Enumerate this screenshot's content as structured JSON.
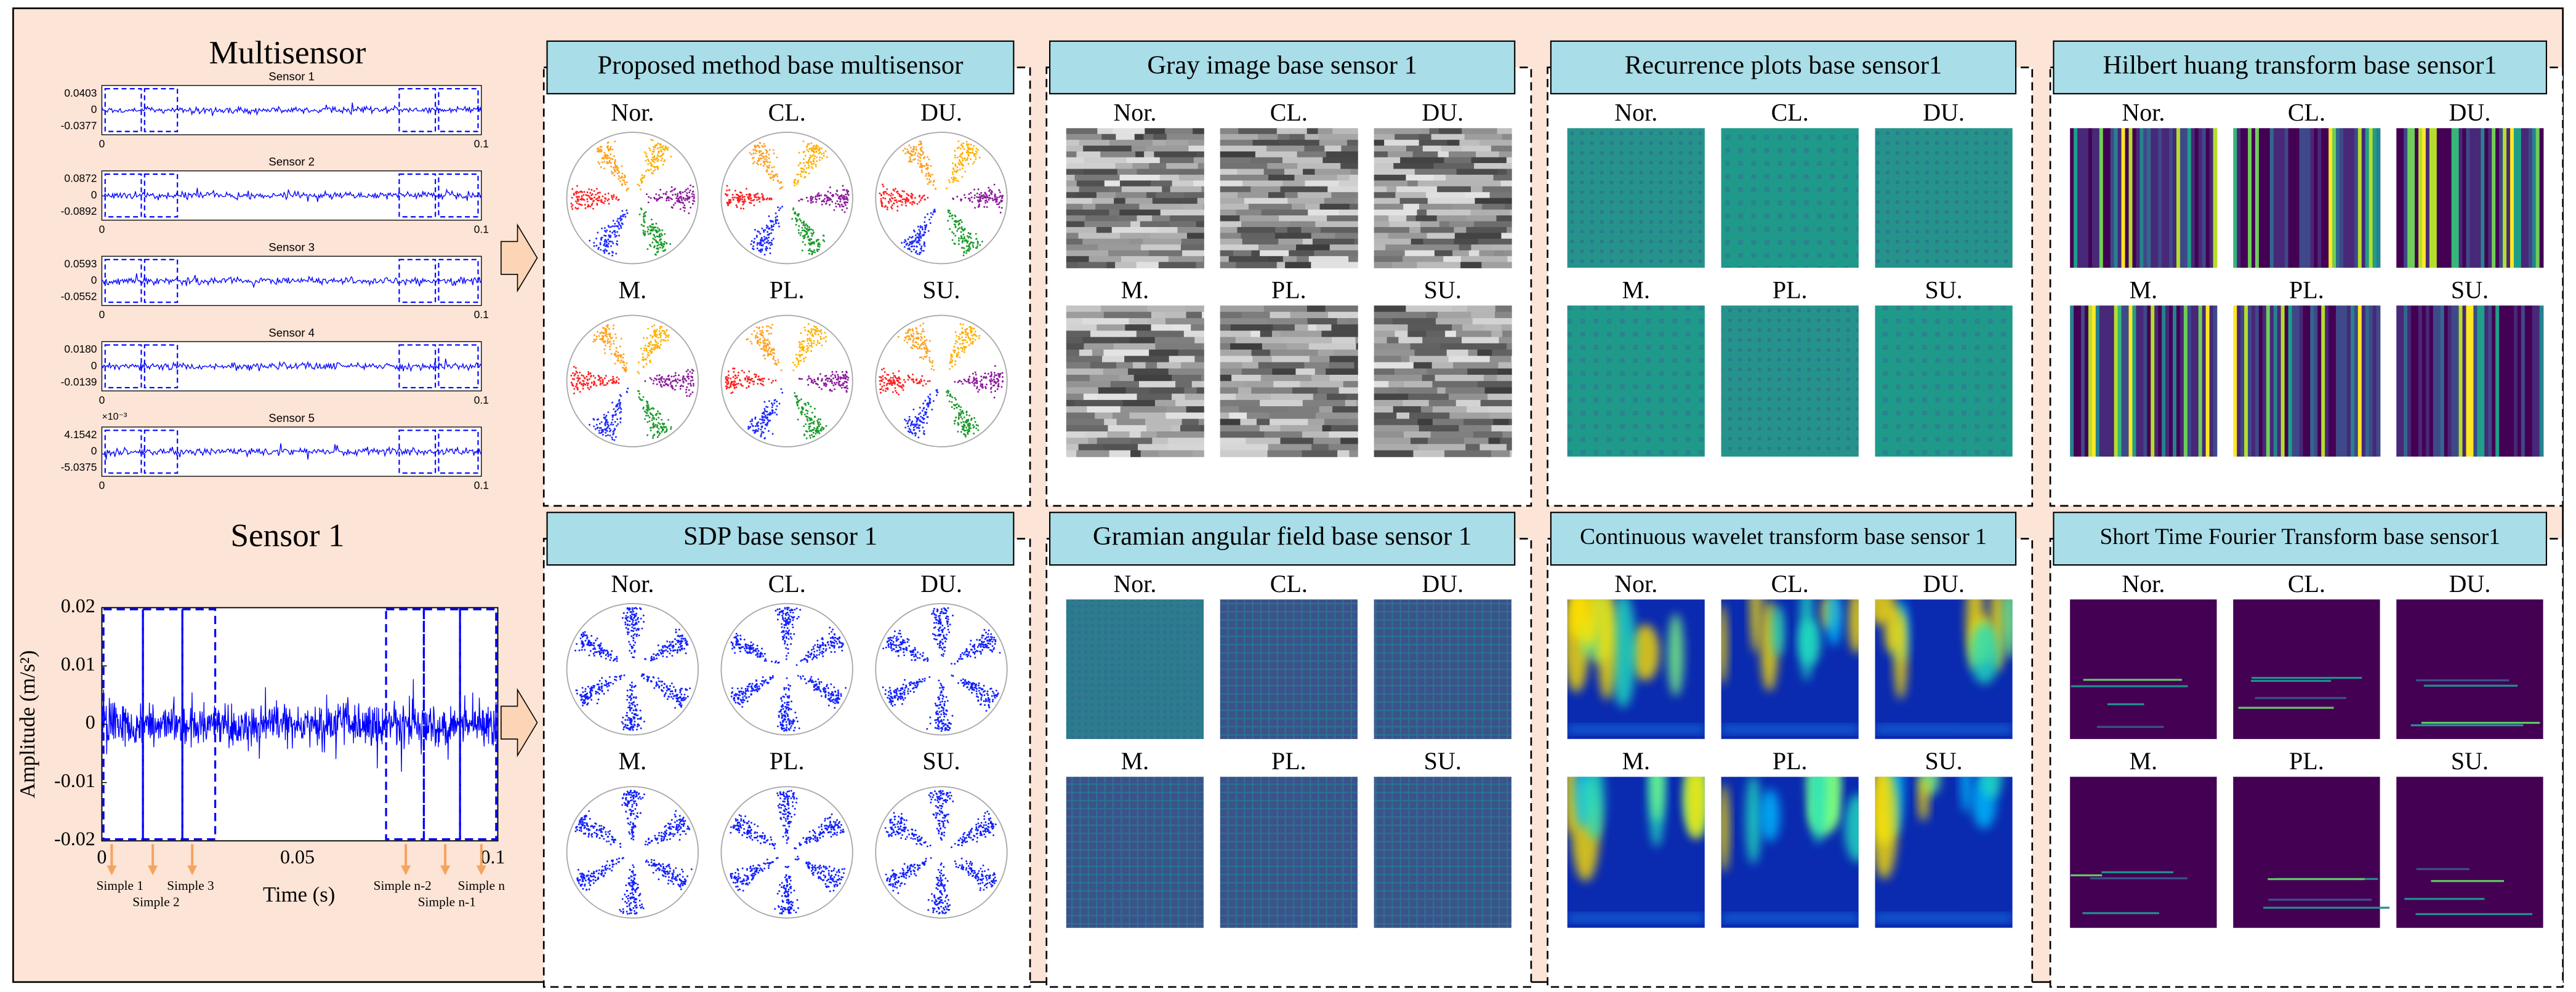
{
  "multisensor": {
    "title": "Multisensor",
    "plots": [
      {
        "name": "Sensor 1",
        "ymax": "0.0403",
        "ymid": "0",
        "ymin": "-0.0377"
      },
      {
        "name": "Sensor 2",
        "ymax": "0.0872",
        "ymid": "0",
        "ymin": "-0.0892"
      },
      {
        "name": "Sensor 3",
        "ymax": "0.0593",
        "ymid": "0",
        "ymin": "-0.0552"
      },
      {
        "name": "Sensor 4",
        "ymax": "0.0180",
        "ymid": "0",
        "ymin": "-0.0139"
      },
      {
        "name": "Sensor 5",
        "scale": "×10⁻³",
        "ymax": "4.1542",
        "ymid": "0",
        "ymin": "-5.0375"
      }
    ],
    "xticks": [
      "0",
      "0.1"
    ]
  },
  "sensor1": {
    "title": "Sensor 1",
    "ylabel": "Amplitude (m/s²)",
    "xlabel": "Time (s)",
    "yticks": [
      "0.02",
      "0.01",
      "0",
      "-0.01",
      "-0.02"
    ],
    "xticks": [
      "0",
      "0.05",
      "0.1"
    ],
    "samples": [
      "Simple 1",
      "Simple 2",
      "Simple 3",
      "Simple n-2",
      "Simple n-1",
      "Simple n"
    ]
  },
  "panels": [
    {
      "title": "Proposed method base multisensor",
      "classes": [
        "Nor.",
        "CL.",
        "DU.",
        "M.",
        "PL.",
        "SU."
      ]
    },
    {
      "title": "Gray image base sensor 1",
      "classes": [
        "Nor.",
        "CL.",
        "DU.",
        "M.",
        "PL.",
        "SU."
      ]
    },
    {
      "title": "Recurrence plots base sensor1",
      "classes": [
        "Nor.",
        "CL.",
        "DU.",
        "M.",
        "PL.",
        "SU."
      ]
    },
    {
      "title": "Hilbert huang transform base sensor1",
      "classes": [
        "Nor.",
        "CL.",
        "DU.",
        "M.",
        "PL.",
        "SU."
      ]
    },
    {
      "title": "SDP base sensor 1",
      "classes": [
        "Nor.",
        "CL.",
        "DU.",
        "M.",
        "PL.",
        "SU."
      ]
    },
    {
      "title": "Gramian angular field base sensor 1",
      "classes": [
        "Nor.",
        "CL.",
        "DU.",
        "M.",
        "PL.",
        "SU."
      ]
    },
    {
      "title": "Continuous wavelet transform base sensor 1",
      "classes": [
        "Nor.",
        "CL.",
        "DU.",
        "M.",
        "PL.",
        "SU."
      ]
    },
    {
      "title": "Short Time Fourier Transform base sensor1",
      "classes": [
        "Nor.",
        "CL.",
        "DU.",
        "M.",
        "PL.",
        "SU."
      ]
    }
  ]
}
